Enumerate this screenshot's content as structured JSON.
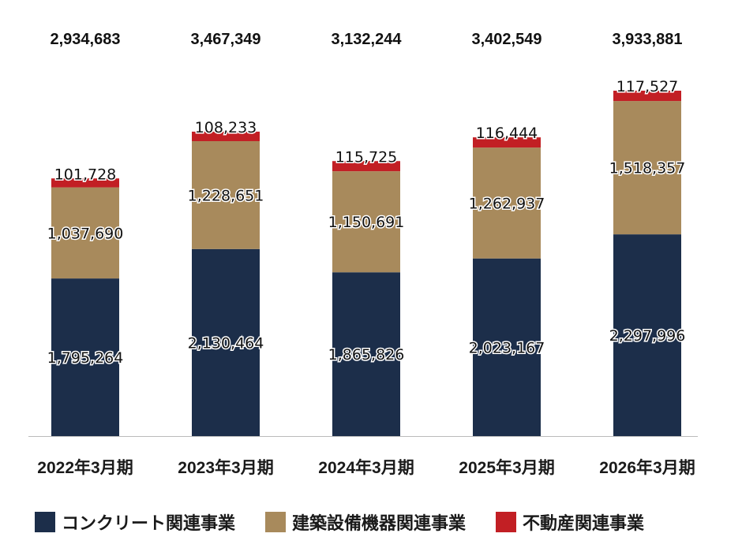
{
  "chart_data": {
    "type": "bar",
    "stacked": true,
    "categories": [
      "2022年3月期",
      "2023年3月期",
      "2024年3月期",
      "2025年3月期",
      "2026年3月期"
    ],
    "series": [
      {
        "name": "コンクリート関連事業",
        "color": "#1c2e4a",
        "values": [
          1795264,
          2130464,
          1865826,
          2023167,
          2297996
        ],
        "labels": [
          "1,795,264",
          "2,130,464",
          "1,865,826",
          "2,023,167",
          "2,297,996"
        ]
      },
      {
        "name": "建築設備機器関連事業",
        "color": "#a88a5c",
        "values": [
          1037690,
          1228651,
          1150691,
          1262937,
          1518357
        ],
        "labels": [
          "1,037,690",
          "1,228,651",
          "1,150,691",
          "1,262,937",
          "1,518,357"
        ]
      },
      {
        "name": "不動産関連事業",
        "color": "#c21f24",
        "values": [
          101728,
          108233,
          115725,
          116444,
          117527
        ],
        "labels": [
          "101,728",
          "108,233",
          "115,725",
          "116,444",
          "117,527"
        ]
      }
    ],
    "totals": [
      2934683,
      3467349,
      3132244,
      3402549,
      3933881
    ],
    "total_labels": [
      "2,934,683",
      "3,467,349",
      "3,132,244",
      "3,402,549",
      "3,933,881"
    ],
    "ylim": [
      0,
      3933881
    ],
    "grid": false,
    "legend_position": "bottom",
    "title": "",
    "xlabel": "",
    "ylabel": ""
  }
}
